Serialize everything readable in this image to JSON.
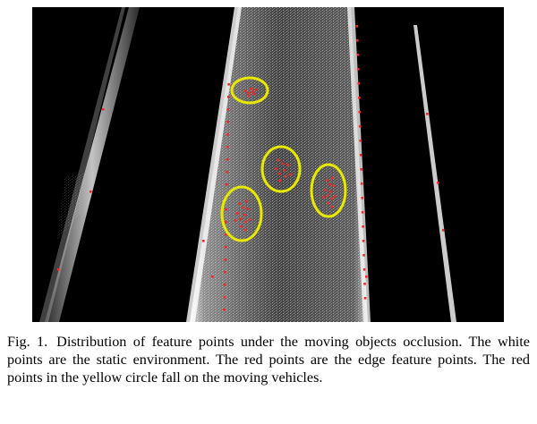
{
  "figure": {
    "image_description_for_alt": "",
    "annotations": {
      "circle_color": "#e6e600",
      "point_color_edge": "#ff2020",
      "point_color_static": "#ffffff"
    }
  },
  "caption": {
    "label": "Fig. 1.",
    "text": "Distribution of feature points under the moving objects occlusion. The white points are the static environment. The red points are the edge feature points. The red points in the yellow circle fall on the moving vehicles."
  }
}
